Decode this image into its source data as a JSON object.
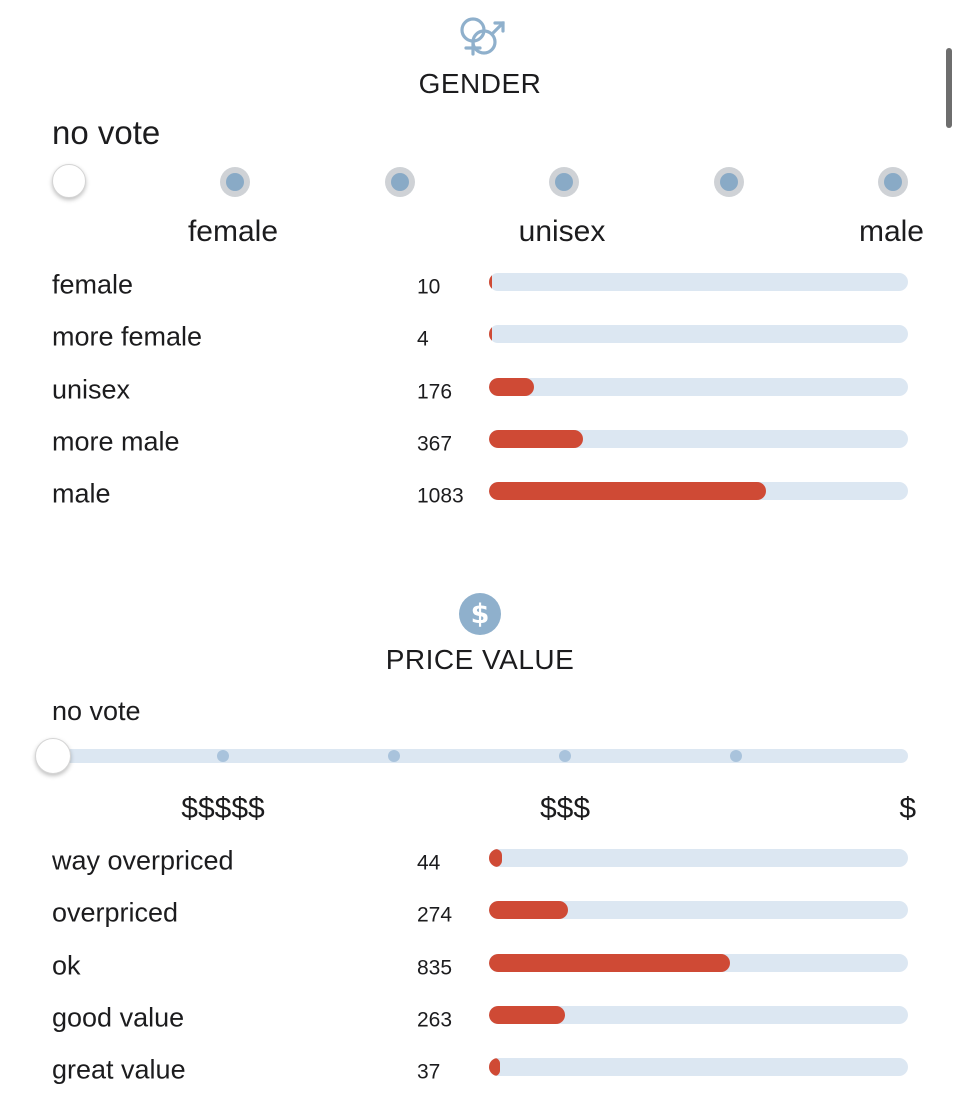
{
  "gender": {
    "icon": "gender-icon",
    "title": "GENDER",
    "status": "no vote",
    "scale_labels": [
      "female",
      "unisex",
      "male"
    ],
    "rows": [
      {
        "label": "female",
        "count": "10",
        "fraction": 0.0092
      },
      {
        "label": "more female",
        "count": "4",
        "fraction": 0.0037
      },
      {
        "label": "unisex",
        "count": "176",
        "fraction": 0.1625
      },
      {
        "label": "more male",
        "count": "367",
        "fraction": 0.3389
      },
      {
        "label": "male",
        "count": "1083",
        "fraction": 1.0
      }
    ],
    "max_fill_fraction_of_track": 0.66
  },
  "price_value": {
    "icon": "dollar-coin-icon",
    "title": "PRICE VALUE",
    "status": "no vote",
    "scale_labels": [
      "$$$$$",
      "$$$",
      "$"
    ],
    "rows": [
      {
        "label": "way overpriced",
        "count": "44"
      },
      {
        "label": "overpriced",
        "count": "274"
      },
      {
        "label": "ok",
        "count": "835"
      },
      {
        "label": "good value",
        "count": "263"
      },
      {
        "label": "great value",
        "count": "37"
      }
    ],
    "max_fill_fraction_of_track": 0.575
  },
  "colors": {
    "bar_fill": "#cf4a35",
    "bar_track": "#dce7f2",
    "icon_blue": "#8fb0cc",
    "radio_dot": "#89aac6"
  }
}
